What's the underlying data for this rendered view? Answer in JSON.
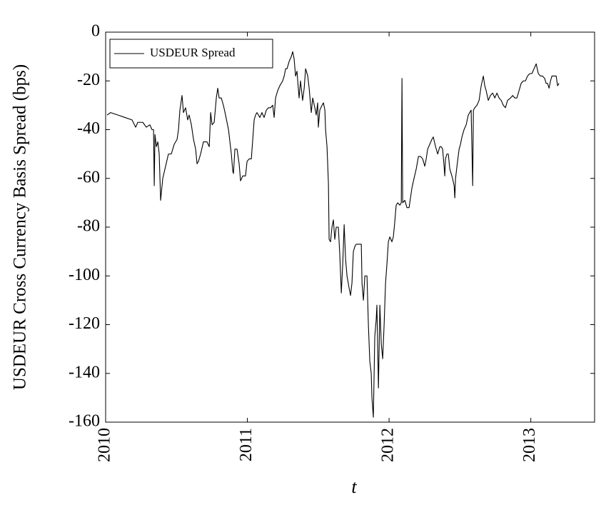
{
  "chart_data": {
    "type": "line",
    "y_label": "USDEUR Cross Currency Basis Spread (bps)",
    "x_label": "t",
    "xlim": [
      2010,
      2013.45
    ],
    "xticks": [
      2010,
      2011,
      2012,
      2013
    ],
    "ylim": [
      -160,
      0
    ],
    "yticks": [
      -160,
      -140,
      -120,
      -100,
      -80,
      -60,
      -40,
      -20,
      0
    ],
    "legend": "upper left",
    "series": [
      {
        "name": "USDEUR Spread",
        "color": "#000000",
        "x": [
          2010.01,
          2010.035,
          2010.086,
          2010.136,
          2010.186,
          2010.212,
          2010.227,
          2010.262,
          2010.287,
          2010.312,
          2010.327,
          2010.338,
          2010.343,
          2010.348,
          2010.358,
          2010.368,
          2010.378,
          2010.388,
          2010.403,
          2010.423,
          2010.443,
          2010.463,
          2010.484,
          2010.504,
          2010.514,
          2010.524,
          2010.539,
          2010.549,
          2010.564,
          2010.579,
          2010.589,
          2010.605,
          2010.62,
          2010.635,
          2010.645,
          2010.655,
          2010.67,
          2010.69,
          2010.715,
          2010.731,
          2010.741,
          2010.751,
          2010.766,
          2010.781,
          2010.791,
          2010.801,
          2010.816,
          2010.831,
          2010.846,
          2010.867,
          2010.887,
          2010.897,
          2010.902,
          2010.912,
          2010.927,
          2010.942,
          2010.952,
          2010.967,
          2010.987,
          2010.998,
          2011.013,
          2011.028,
          2011.038,
          2011.048,
          2011.058,
          2011.068,
          2011.088,
          2011.103,
          2011.118,
          2011.134,
          2011.149,
          2011.164,
          2011.179,
          2011.189,
          2011.199,
          2011.214,
          2011.229,
          2011.249,
          2011.26,
          2011.27,
          2011.28,
          2011.295,
          2011.31,
          2011.32,
          2011.33,
          2011.34,
          2011.35,
          2011.365,
          2011.375,
          2011.39,
          2011.401,
          2011.411,
          2011.426,
          2011.436,
          2011.451,
          2011.461,
          2011.476,
          2011.486,
          2011.496,
          2011.501,
          2011.511,
          2011.527,
          2011.537,
          2011.547,
          2011.552,
          2011.562,
          2011.572,
          2011.577,
          2011.587,
          2011.597,
          2011.607,
          2011.617,
          2011.627,
          2011.642,
          2011.652,
          2011.663,
          2011.673,
          2011.683,
          2011.693,
          2011.703,
          2011.718,
          2011.728,
          2011.738,
          2011.748,
          2011.758,
          2011.768,
          2011.788,
          2011.804,
          2011.809,
          2011.819,
          2011.829,
          2011.844,
          2011.854,
          2011.864,
          2011.874,
          2011.879,
          2011.889,
          2011.899,
          2011.909,
          2011.914,
          2011.925,
          2011.935,
          2011.945,
          2011.955,
          2011.965,
          2011.975,
          2011.985,
          2011.995,
          2012.005,
          2012.02,
          2012.03,
          2012.04,
          2012.05,
          2012.061,
          2012.076,
          2012.086,
          2012.091,
          2012.096,
          2012.111,
          2012.126,
          2012.141,
          2012.151,
          2012.161,
          2012.176,
          2012.192,
          2012.207,
          2012.222,
          2012.237,
          2012.252,
          2012.262,
          2012.272,
          2012.287,
          2012.302,
          2012.312,
          2012.328,
          2012.343,
          2012.358,
          2012.368,
          2012.378,
          2012.388,
          2012.393,
          2012.398,
          2012.408,
          2012.418,
          2012.428,
          2012.438,
          2012.448,
          2012.459,
          2012.464,
          2012.469,
          2012.479,
          2012.494,
          2012.504,
          2012.514,
          2012.529,
          2012.544,
          2012.559,
          2012.569,
          2012.579,
          2012.59,
          2012.595,
          2012.605,
          2012.62,
          2012.635,
          2012.65,
          2012.665,
          2012.675,
          2012.685,
          2012.7,
          2012.715,
          2012.731,
          2012.746,
          2012.761,
          2012.776,
          2012.791,
          2012.806,
          2012.821,
          2012.836,
          2012.857,
          2012.872,
          2012.887,
          2012.902,
          2012.917,
          2012.932,
          2012.947,
          2012.962,
          2012.977,
          2012.993,
          2013.008,
          2013.023,
          2013.038,
          2013.053,
          2013.068,
          2013.083,
          2013.098,
          2013.108,
          2013.118,
          2013.129,
          2013.139,
          2013.149,
          2013.164,
          2013.179,
          2013.189,
          2013.199
        ],
        "values": [
          -34,
          -33,
          -34,
          -35,
          -36,
          -39,
          -37,
          -37,
          -39,
          -38,
          -40,
          -40,
          -63,
          -42,
          -47,
          -45,
          -50,
          -69,
          -60,
          -55,
          -50,
          -50,
          -46,
          -44,
          -40,
          -32,
          -26,
          -33,
          -31,
          -36,
          -34,
          -38,
          -44,
          -48,
          -54,
          -53,
          -50,
          -45,
          -45,
          -47,
          -33,
          -38,
          -37,
          -27,
          -23,
          -27,
          -27,
          -30,
          -34,
          -40,
          -50,
          -57,
          -58,
          -48,
          -48,
          -54,
          -61,
          -59,
          -59,
          -53,
          -52,
          -52,
          -44,
          -36,
          -34,
          -33,
          -35,
          -33,
          -35,
          -32,
          -31,
          -31,
          -30,
          -35,
          -27,
          -24,
          -22,
          -20,
          -18,
          -15,
          -15,
          -12,
          -10,
          -8,
          -11,
          -18,
          -16,
          -27,
          -20,
          -28,
          -23,
          -15,
          -18,
          -23,
          -33,
          -27,
          -31,
          -34,
          -29,
          -39,
          -32,
          -30,
          -29,
          -32,
          -40,
          -47,
          -62,
          -85,
          -86,
          -80,
          -77,
          -85,
          -80,
          -80,
          -91,
          -107,
          -95,
          -79,
          -93,
          -100,
          -105,
          -108,
          -103,
          -90,
          -88,
          -87,
          -87,
          -87,
          -103,
          -110,
          -100,
          -100,
          -120,
          -135,
          -140,
          -150,
          -158,
          -125,
          -118,
          -112,
          -146,
          -112,
          -128,
          -134,
          -120,
          -103,
          -95,
          -86,
          -84,
          -86,
          -84,
          -78,
          -71,
          -70,
          -71,
          -70,
          -19,
          -70,
          -69,
          -72,
          -72,
          -68,
          -64,
          -60,
          -56,
          -51,
          -51,
          -52,
          -55,
          -52,
          -48,
          -46,
          -44,
          -43,
          -47,
          -50,
          -47,
          -47,
          -48,
          -55,
          -59,
          -52,
          -50,
          -50,
          -56,
          -58,
          -60,
          -63,
          -68,
          -60,
          -55,
          -48,
          -46,
          -43,
          -40,
          -38,
          -34,
          -33,
          -32,
          -63,
          -32,
          -31,
          -30,
          -28,
          -22,
          -18,
          -22,
          -24,
          -28,
          -26,
          -25,
          -27,
          -25,
          -27,
          -28,
          -30,
          -31,
          -28,
          -27,
          -26,
          -27,
          -27,
          -24,
          -21,
          -20,
          -20,
          -18,
          -17,
          -17,
          -15,
          -13,
          -17,
          -18,
          -18,
          -19,
          -21,
          -21,
          -23,
          -20,
          -18,
          -18,
          -18,
          -22,
          -21
        ]
      }
    ]
  }
}
